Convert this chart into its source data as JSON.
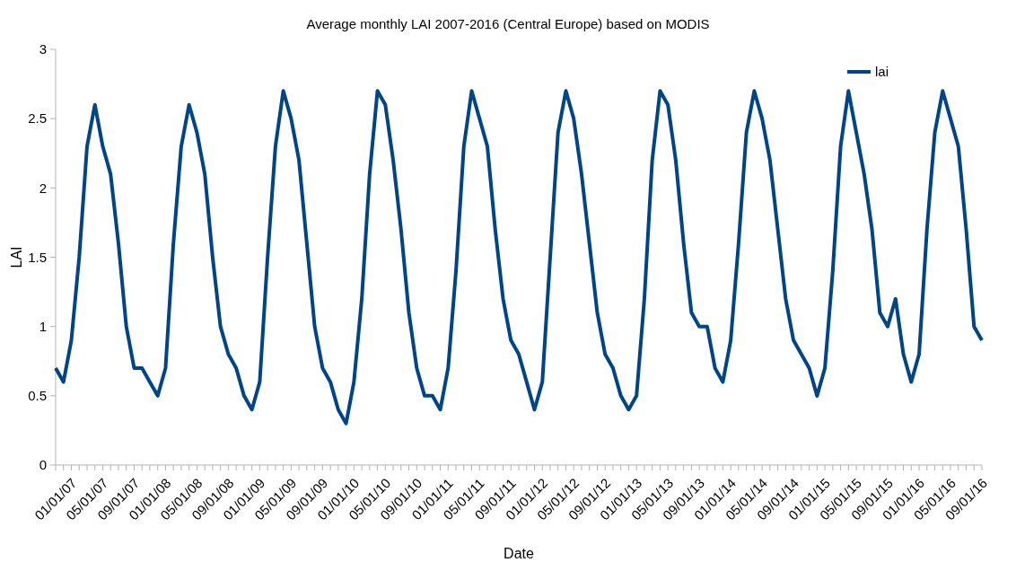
{
  "chart_data": {
    "type": "line",
    "title": "Average monthly LAI 2007-2016 (Central Europe) based on MODIS",
    "xlabel": "Date",
    "ylabel": "LAI",
    "categories": [
      "01/01/07",
      null,
      null,
      null,
      "05/01/07",
      null,
      null,
      null,
      "09/01/07",
      null,
      null,
      null,
      "01/01/08",
      null,
      null,
      null,
      "05/01/08",
      null,
      null,
      null,
      "09/01/08",
      null,
      null,
      null,
      "01/01/09",
      null,
      null,
      null,
      "05/01/09",
      null,
      null,
      null,
      "09/01/09",
      null,
      null,
      null,
      "01/01/10",
      null,
      null,
      null,
      "05/01/10",
      null,
      null,
      null,
      "09/01/10",
      null,
      null,
      null,
      "01/01/11",
      null,
      null,
      null,
      "05/01/11",
      null,
      null,
      null,
      "09/01/11",
      null,
      null,
      null,
      "01/01/12",
      null,
      null,
      null,
      "05/01/12",
      null,
      null,
      null,
      "09/01/12",
      null,
      null,
      null,
      "01/01/13",
      null,
      null,
      null,
      "05/01/13",
      null,
      null,
      null,
      "09/01/13",
      null,
      null,
      null,
      "01/01/14",
      null,
      null,
      null,
      "05/01/14",
      null,
      null,
      null,
      "09/01/14",
      null,
      null,
      null,
      "01/01/15",
      null,
      null,
      null,
      "05/01/15",
      null,
      null,
      null,
      "09/01/15",
      null,
      null,
      null,
      "01/01/16",
      null,
      null,
      null,
      "05/01/16",
      null,
      null,
      null,
      "09/01/16",
      null,
      null
    ],
    "series": [
      {
        "name": "lai",
        "color": "#004586",
        "values": [
          0.7,
          0.6,
          0.9,
          1.5,
          2.3,
          2.6,
          2.3,
          2.1,
          1.6,
          1.0,
          0.7,
          0.7,
          0.6,
          0.5,
          0.7,
          1.6,
          2.3,
          2.6,
          2.4,
          2.1,
          1.5,
          1.0,
          0.8,
          0.7,
          0.5,
          0.4,
          0.6,
          1.5,
          2.3,
          2.7,
          2.5,
          2.2,
          1.6,
          1.0,
          0.7,
          0.6,
          0.4,
          0.3,
          0.6,
          1.2,
          2.1,
          2.7,
          2.6,
          2.2,
          1.7,
          1.1,
          0.7,
          0.5,
          0.5,
          0.4,
          0.7,
          1.4,
          2.3,
          2.7,
          2.5,
          2.3,
          1.7,
          1.2,
          0.9,
          0.8,
          0.6,
          0.4,
          0.6,
          1.5,
          2.4,
          2.7,
          2.5,
          2.1,
          1.6,
          1.1,
          0.8,
          0.7,
          0.5,
          0.4,
          0.5,
          1.2,
          2.2,
          2.7,
          2.6,
          2.2,
          1.6,
          1.1,
          1.0,
          1.0,
          0.7,
          0.6,
          0.9,
          1.6,
          2.4,
          2.7,
          2.5,
          2.2,
          1.7,
          1.2,
          0.9,
          0.8,
          0.7,
          0.5,
          0.7,
          1.4,
          2.3,
          2.7,
          2.4,
          2.1,
          1.7,
          1.1,
          1.0,
          1.2,
          0.8,
          0.6,
          0.8,
          1.7,
          2.4,
          2.7,
          2.5,
          2.3,
          1.7,
          1.0,
          0.9
        ]
      }
    ],
    "ylim": [
      0,
      3
    ],
    "yticks": [
      0,
      0.5,
      1,
      1.5,
      2,
      2.5,
      3
    ],
    "grid": false,
    "legend": "top right",
    "line_style": "solid",
    "marker": "none"
  }
}
